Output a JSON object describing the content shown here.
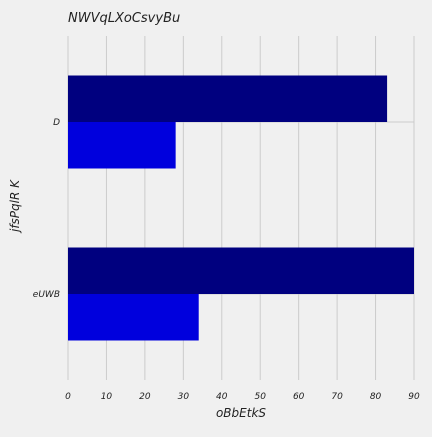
{
  "chart_data": {
    "type": "bar",
    "orientation": "horizontal",
    "title": "NWVqLXoCsvyBu",
    "xlabel": "oBbEtkS",
    "ylabel": "jfsPqlR K",
    "categories": [
      "eUWB",
      "D"
    ],
    "series": [
      {
        "values": [
          90,
          83
        ],
        "color": "#00007f"
      },
      {
        "values": [
          34,
          28
        ],
        "color": "#0000dd"
      }
    ],
    "xlim": [
      0,
      90
    ],
    "xticks": [
      0,
      10,
      20,
      30,
      40,
      50,
      60,
      70,
      80,
      90
    ],
    "grid": true
  }
}
